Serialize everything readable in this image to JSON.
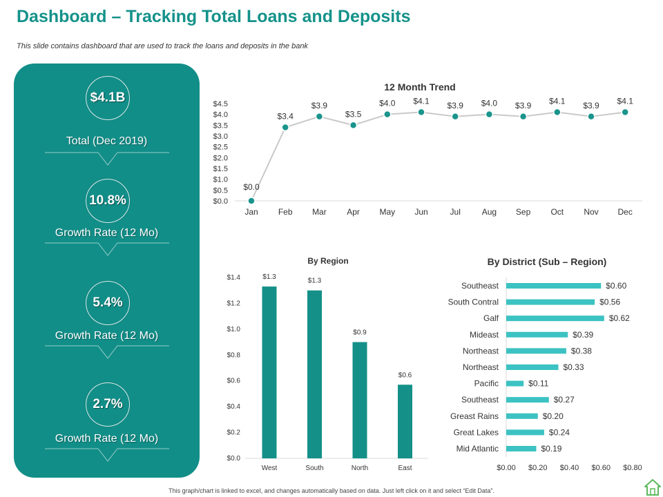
{
  "header": {
    "title": "Dashboard – Tracking Total Loans and Deposits",
    "subtitle": "This slide contains dashboard that are used to track the  loans and deposits in the bank"
  },
  "kpis": [
    {
      "value": "$4.1B",
      "label": "Total (Dec 2019)"
    },
    {
      "value": "10.8%",
      "label": "Growth Rate (12 Mo)"
    },
    {
      "value": "5.4%",
      "label": "Growth Rate (12 Mo)"
    },
    {
      "value": "2.7%",
      "label": "Growth Rate (12 Mo)"
    }
  ],
  "footer": {
    "note": "This graph/chart is linked to excel, and changes automatically based on data. Just left click on it and select “Edit Data”."
  },
  "colors": {
    "accent": "#14928a",
    "panel": "#128e88",
    "line": "#c9c9c9",
    "marker": "#1a948c",
    "region_bar": "#149088",
    "district_bar": "#3cc2c2"
  },
  "icons": {
    "home": "home-icon"
  },
  "chart_data": [
    {
      "type": "line",
      "title": "12 Month Trend",
      "categories": [
        "Jan",
        "Feb",
        "Mar",
        "Apr",
        "May",
        "Jun",
        "Jul",
        "Aug",
        "Sep",
        "Oct",
        "Nov",
        "Dec"
      ],
      "values": [
        0.0,
        3.4,
        3.9,
        3.5,
        4.0,
        4.1,
        3.9,
        4.0,
        3.9,
        4.1,
        3.9,
        4.1
      ],
      "data_labels": [
        "$0.0",
        "$3.4",
        "$3.9",
        "$3.5",
        "$4.0",
        "$4.1",
        "$3.9",
        "$4.0",
        "$3.9",
        "$4.1",
        "$3.9",
        "$4.1"
      ],
      "yticks": [
        "$0.0",
        "$0.5",
        "$1.0",
        "$1.5",
        "$2.0",
        "$2.5",
        "$3.0",
        "$3.5",
        "$4.0",
        "$4.5"
      ],
      "ylim": [
        0,
        4.5
      ],
      "grid": false
    },
    {
      "type": "bar",
      "title": "By Region",
      "categories": [
        "West",
        "South",
        "North",
        "East"
      ],
      "values": [
        1.33,
        1.3,
        0.9,
        0.57
      ],
      "data_labels": [
        "$1.3",
        "$1.3",
        "$0.9",
        "$0.6"
      ],
      "yticks": [
        "$0.0",
        "$0.2",
        "$0.4",
        "$0.6",
        "$0.8",
        "$1.0",
        "$1.2",
        "$1.4"
      ],
      "ylim": [
        0,
        1.4
      ],
      "grid": false
    },
    {
      "type": "bar",
      "orientation": "horizontal",
      "title": "By District (Sub – Region)",
      "categories": [
        "Southeast",
        "South Contral",
        "Galf",
        "Mideast",
        "Northeast",
        "Northeast",
        "Pacific",
        "Southeast",
        "Greast Rains",
        "Great Lakes",
        "Mid Atlantic"
      ],
      "values": [
        0.6,
        0.56,
        0.62,
        0.39,
        0.38,
        0.33,
        0.11,
        0.27,
        0.2,
        0.24,
        0.19
      ],
      "data_labels": [
        "$0.60",
        "$0.56",
        "$0.62",
        "$0.39",
        "$0.38",
        "$0.33",
        "$0.11",
        "$0.27",
        "$0.20",
        "$0.24",
        "$0.19"
      ],
      "xticks": [
        "$0.00",
        "$0.20",
        "$0.40",
        "$0.60",
        "$0.80"
      ],
      "xlim": [
        0,
        0.8
      ],
      "grid": false
    }
  ]
}
